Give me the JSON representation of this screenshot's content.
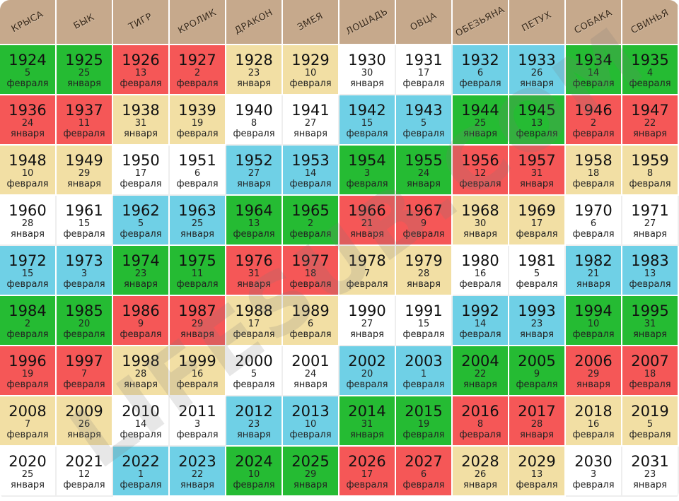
{
  "animals": [
    "КРЫСА",
    "БЫК",
    "ТИГР",
    "КРОЛИК",
    "ДРАКОН",
    "ЗМЕЯ",
    "ЛОШАДЬ",
    "ОВЦА",
    "ОБЕЗЬЯНА",
    "ПЕТУХ",
    "СОБАКА",
    "СВИНЬЯ"
  ],
  "cell_colors": {
    "g": "#25bb33",
    "r": "#f55757",
    "y": "#f2dfa4",
    "w": "#ffffff",
    "b": "#6fd0e6"
  },
  "rows": [
    [
      {
        "year": "1924",
        "day": "5",
        "month": "февраля",
        "color": "g"
      },
      {
        "year": "1925",
        "day": "25",
        "month": "января",
        "color": "g"
      },
      {
        "year": "1926",
        "day": "13",
        "month": "февраля",
        "color": "r"
      },
      {
        "year": "1927",
        "day": "2",
        "month": "февраля",
        "color": "r"
      },
      {
        "year": "1928",
        "day": "23",
        "month": "января",
        "color": "y"
      },
      {
        "year": "1929",
        "day": "10",
        "month": "февраля",
        "color": "y"
      },
      {
        "year": "1930",
        "day": "30",
        "month": "января",
        "color": "w"
      },
      {
        "year": "1931",
        "day": "17",
        "month": "февраля",
        "color": "w"
      },
      {
        "year": "1932",
        "day": "6",
        "month": "февраля",
        "color": "b"
      },
      {
        "year": "1933",
        "day": "26",
        "month": "января",
        "color": "b"
      },
      {
        "year": "1934",
        "day": "14",
        "month": "февраля",
        "color": "g"
      },
      {
        "year": "1935",
        "day": "4",
        "month": "февраля",
        "color": "g"
      }
    ],
    [
      {
        "year": "1936",
        "day": "24",
        "month": "января",
        "color": "r"
      },
      {
        "year": "1937",
        "day": "11",
        "month": "февраля",
        "color": "r"
      },
      {
        "year": "1938",
        "day": "31",
        "month": "января",
        "color": "y"
      },
      {
        "year": "1939",
        "day": "19",
        "month": "февраля",
        "color": "y"
      },
      {
        "year": "1940",
        "day": "8",
        "month": "февраля",
        "color": "w"
      },
      {
        "year": "1941",
        "day": "27",
        "month": "января",
        "color": "w"
      },
      {
        "year": "1942",
        "day": "15",
        "month": "февраля",
        "color": "b"
      },
      {
        "year": "1943",
        "day": "5",
        "month": "февраля",
        "color": "b"
      },
      {
        "year": "1944",
        "day": "25",
        "month": "января",
        "color": "g"
      },
      {
        "year": "1945",
        "day": "13",
        "month": "февраля",
        "color": "g"
      },
      {
        "year": "1946",
        "day": "2",
        "month": "февраля",
        "color": "r"
      },
      {
        "year": "1947",
        "day": "22",
        "month": "января",
        "color": "r"
      }
    ],
    [
      {
        "year": "1948",
        "day": "10",
        "month": "февраля",
        "color": "y"
      },
      {
        "year": "1949",
        "day": "29",
        "month": "января",
        "color": "y"
      },
      {
        "year": "1950",
        "day": "17",
        "month": "февраля",
        "color": "w"
      },
      {
        "year": "1951",
        "day": "6",
        "month": "февраля",
        "color": "w"
      },
      {
        "year": "1952",
        "day": "27",
        "month": "января",
        "color": "b"
      },
      {
        "year": "1953",
        "day": "14",
        "month": "февраля",
        "color": "b"
      },
      {
        "year": "1954",
        "day": "3",
        "month": "февраля",
        "color": "g"
      },
      {
        "year": "1955",
        "day": "24",
        "month": "января",
        "color": "g"
      },
      {
        "year": "1956",
        "day": "12",
        "month": "февраля",
        "color": "r"
      },
      {
        "year": "1957",
        "day": "31",
        "month": "января",
        "color": "r"
      },
      {
        "year": "1958",
        "day": "18",
        "month": "февраля",
        "color": "y"
      },
      {
        "year": "1959",
        "day": "8",
        "month": "февраля",
        "color": "y"
      }
    ],
    [
      {
        "year": "1960",
        "day": "28",
        "month": "января",
        "color": "w"
      },
      {
        "year": "1961",
        "day": "15",
        "month": "февраля",
        "color": "w"
      },
      {
        "year": "1962",
        "day": "5",
        "month": "февраля",
        "color": "b"
      },
      {
        "year": "1963",
        "day": "25",
        "month": "января",
        "color": "b"
      },
      {
        "year": "1964",
        "day": "13",
        "month": "февраля",
        "color": "g"
      },
      {
        "year": "1965",
        "day": "2",
        "month": "февраля",
        "color": "g"
      },
      {
        "year": "1966",
        "day": "21",
        "month": "января",
        "color": "r"
      },
      {
        "year": "1967",
        "day": "9",
        "month": "февраля",
        "color": "r"
      },
      {
        "year": "1968",
        "day": "30",
        "month": "января",
        "color": "y"
      },
      {
        "year": "1969",
        "day": "17",
        "month": "февраля",
        "color": "y"
      },
      {
        "year": "1970",
        "day": "6",
        "month": "февраля",
        "color": "w"
      },
      {
        "year": "1971",
        "day": "27",
        "month": "января",
        "color": "w"
      }
    ],
    [
      {
        "year": "1972",
        "day": "15",
        "month": "февраля",
        "color": "b"
      },
      {
        "year": "1973",
        "day": "3",
        "month": "февраля",
        "color": "b"
      },
      {
        "year": "1974",
        "day": "23",
        "month": "января",
        "color": "g"
      },
      {
        "year": "1975",
        "day": "11",
        "month": "февраля",
        "color": "g"
      },
      {
        "year": "1976",
        "day": "31",
        "month": "января",
        "color": "r"
      },
      {
        "year": "1977",
        "day": "18",
        "month": "февраля",
        "color": "r"
      },
      {
        "year": "1978",
        "day": "7",
        "month": "февраля",
        "color": "y"
      },
      {
        "year": "1979",
        "day": "28",
        "month": "января",
        "color": "y"
      },
      {
        "year": "1980",
        "day": "16",
        "month": "февраля",
        "color": "w"
      },
      {
        "year": "1981",
        "day": "5",
        "month": "февраля",
        "color": "w"
      },
      {
        "year": "1982",
        "day": "21",
        "month": "января",
        "color": "b"
      },
      {
        "year": "1983",
        "day": "13",
        "month": "февраля",
        "color": "b"
      }
    ],
    [
      {
        "year": "1984",
        "day": "2",
        "month": "февраля",
        "color": "g"
      },
      {
        "year": "1985",
        "day": "20",
        "month": "февраля",
        "color": "g"
      },
      {
        "year": "1986",
        "day": "9",
        "month": "февраля",
        "color": "r"
      },
      {
        "year": "1987",
        "day": "29",
        "month": "января",
        "color": "r"
      },
      {
        "year": "1988",
        "day": "17",
        "month": "февраля",
        "color": "y"
      },
      {
        "year": "1989",
        "day": "6",
        "month": "февраля",
        "color": "y"
      },
      {
        "year": "1990",
        "day": "27",
        "month": "января",
        "color": "w"
      },
      {
        "year": "1991",
        "day": "15",
        "month": "февраля",
        "color": "w"
      },
      {
        "year": "1992",
        "day": "14",
        "month": "февраля",
        "color": "b"
      },
      {
        "year": "1993",
        "day": "23",
        "month": "января",
        "color": "b"
      },
      {
        "year": "1994",
        "day": "10",
        "month": "февраля",
        "color": "g"
      },
      {
        "year": "1995",
        "day": "31",
        "month": "января",
        "color": "g"
      }
    ],
    [
      {
        "year": "1996",
        "day": "19",
        "month": "февраля",
        "color": "r"
      },
      {
        "year": "1997",
        "day": "7",
        "month": "февраля",
        "color": "r"
      },
      {
        "year": "1998",
        "day": "28",
        "month": "января",
        "color": "y"
      },
      {
        "year": "1999",
        "day": "16",
        "month": "февраля",
        "color": "y"
      },
      {
        "year": "2000",
        "day": "5",
        "month": "февраля",
        "color": "w"
      },
      {
        "year": "2001",
        "day": "24",
        "month": "января",
        "color": "w"
      },
      {
        "year": "2002",
        "day": "20",
        "month": "февраля",
        "color": "b"
      },
      {
        "year": "2003",
        "day": "1",
        "month": "февраля",
        "color": "b"
      },
      {
        "year": "2004",
        "day": "22",
        "month": "января",
        "color": "g"
      },
      {
        "year": "2005",
        "day": "9",
        "month": "февраля",
        "color": "g"
      },
      {
        "year": "2006",
        "day": "29",
        "month": "января",
        "color": "r"
      },
      {
        "year": "2007",
        "day": "18",
        "month": "февраля",
        "color": "r"
      }
    ],
    [
      {
        "year": "2008",
        "day": "7",
        "month": "февраля",
        "color": "y"
      },
      {
        "year": "2009",
        "day": "26",
        "month": "января",
        "color": "y"
      },
      {
        "year": "2010",
        "day": "14",
        "month": "февраля",
        "color": "w"
      },
      {
        "year": "2011",
        "day": "3",
        "month": "февраля",
        "color": "w"
      },
      {
        "year": "2012",
        "day": "23",
        "month": "января",
        "color": "b"
      },
      {
        "year": "2013",
        "day": "10",
        "month": "февраля",
        "color": "b"
      },
      {
        "year": "2014",
        "day": "31",
        "month": "января",
        "color": "g"
      },
      {
        "year": "2015",
        "day": "19",
        "month": "февраля",
        "color": "g"
      },
      {
        "year": "2016",
        "day": "8",
        "month": "февраля",
        "color": "r"
      },
      {
        "year": "2017",
        "day": "28",
        "month": "января",
        "color": "r"
      },
      {
        "year": "2018",
        "day": "16",
        "month": "февраля",
        "color": "y"
      },
      {
        "year": "2019",
        "day": "5",
        "month": "февраля",
        "color": "y"
      }
    ],
    [
      {
        "year": "2020",
        "day": "25",
        "month": "января",
        "color": "w"
      },
      {
        "year": "2021",
        "day": "12",
        "month": "февраля",
        "color": "w"
      },
      {
        "year": "2022",
        "day": "1",
        "month": "февраля",
        "color": "b"
      },
      {
        "year": "2023",
        "day": "22",
        "month": "января",
        "color": "b"
      },
      {
        "year": "2024",
        "day": "10",
        "month": "февраля",
        "color": "g"
      },
      {
        "year": "2025",
        "day": "29",
        "month": "января",
        "color": "g"
      },
      {
        "year": "2026",
        "day": "17",
        "month": "февраля",
        "color": "r"
      },
      {
        "year": "2027",
        "day": "6",
        "month": "февраля",
        "color": "r"
      },
      {
        "year": "2028",
        "day": "26",
        "month": "января",
        "color": "y"
      },
      {
        "year": "2029",
        "day": "13",
        "month": "февраля",
        "color": "y"
      },
      {
        "year": "2030",
        "day": "3",
        "month": "февраля",
        "color": "w"
      },
      {
        "year": "2031",
        "day": "23",
        "month": "января",
        "color": "w"
      }
    ]
  ],
  "watermark": "LIFESUB.COM"
}
